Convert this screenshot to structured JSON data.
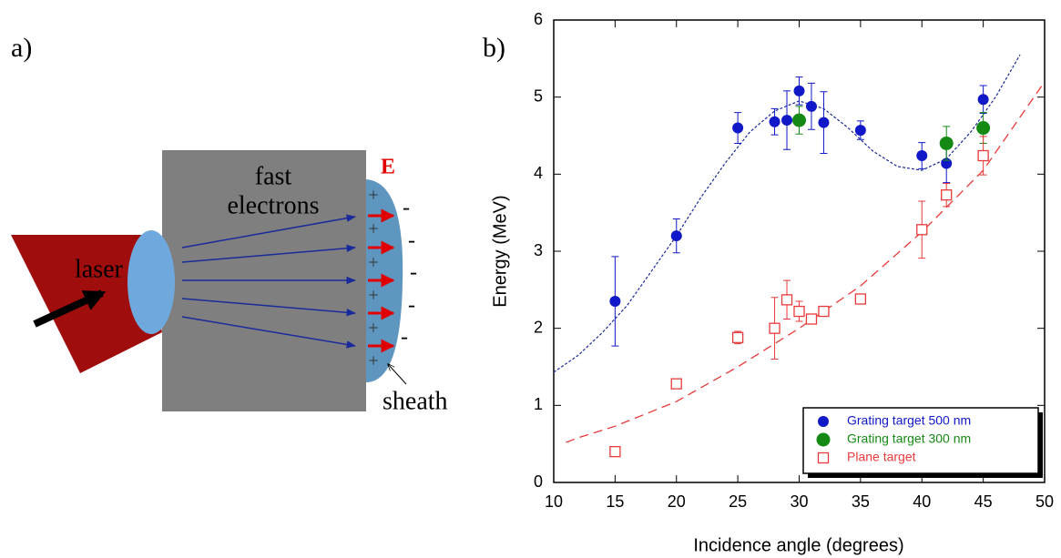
{
  "panel_a": {
    "label": "a)",
    "laser": "laser",
    "fast_electrons": [
      "fast",
      "electrons"
    ],
    "field": "E",
    "sheath": "sheath",
    "plus_signs": [
      "+",
      "+",
      "+",
      "+",
      "+",
      "+"
    ],
    "minus_signs": [
      "-",
      "-",
      "-",
      "-",
      "-"
    ]
  },
  "chart_data": {
    "type": "scatter",
    "panel_label": "b)",
    "x_label": "Incidence angle (degrees)",
    "y_label": "Energy (MeV)",
    "xlim": [
      10,
      50
    ],
    "ylim": [
      0,
      6
    ],
    "xticks": [
      10,
      15,
      20,
      25,
      30,
      35,
      40,
      45,
      50
    ],
    "yticks": [
      0,
      1,
      2,
      3,
      4,
      5,
      6
    ],
    "legend": "lower right",
    "series": [
      {
        "name": "Grating target 500 nm",
        "color": "#1018c8",
        "marker": "circle",
        "x": [
          15,
          20,
          25,
          28,
          29,
          30,
          31,
          32,
          35,
          40,
          42,
          45
        ],
        "values": [
          2.35,
          3.2,
          4.6,
          4.68,
          4.7,
          5.08,
          4.88,
          4.67,
          4.57,
          4.24,
          4.14,
          4.97
        ],
        "errors": [
          0.58,
          0.22,
          0.2,
          0.17,
          0.38,
          0.18,
          0.3,
          0.4,
          0.12,
          0.17,
          0.25,
          0.18
        ]
      },
      {
        "name": "Grating target 300 nm",
        "color": "#148a14",
        "marker": "large-circle",
        "x": [
          30,
          42,
          45
        ],
        "values": [
          4.7,
          4.4,
          4.6
        ],
        "errors": [
          0.18,
          0.22,
          0.2
        ]
      },
      {
        "name": "Plane target",
        "color": "#e83a3a",
        "marker": "open-square",
        "x": [
          15,
          20,
          25,
          28,
          29,
          30,
          31,
          32,
          35,
          40,
          42,
          45
        ],
        "values": [
          0.4,
          1.28,
          1.88,
          2.0,
          2.37,
          2.22,
          2.12,
          2.22,
          2.38,
          3.28,
          3.73,
          4.24
        ],
        "errors": [
          null,
          null,
          0.08,
          0.4,
          0.25,
          0.13,
          null,
          null,
          null,
          0.37,
          0.15,
          0.25
        ]
      }
    ],
    "fit_curves": [
      {
        "color": "#1a2a9a",
        "style": "dotted",
        "x": [
          10,
          12,
          14,
          16,
          18,
          20,
          22,
          24,
          26,
          28,
          30,
          32,
          34,
          36,
          38,
          40,
          42,
          44,
          46,
          48
        ],
        "values": [
          1.43,
          1.65,
          1.95,
          2.3,
          2.75,
          3.2,
          3.7,
          4.15,
          4.55,
          4.82,
          4.95,
          4.85,
          4.6,
          4.3,
          4.1,
          4.05,
          4.2,
          4.55,
          5.0,
          5.55
        ]
      },
      {
        "color": "#e83a3a",
        "style": "dashed",
        "x": [
          11,
          12,
          15,
          20,
          25,
          30,
          35,
          40,
          45,
          50
        ],
        "values": [
          0.52,
          0.58,
          0.73,
          1.05,
          1.5,
          2.0,
          2.55,
          3.25,
          4.05,
          5.2
        ]
      }
    ]
  }
}
